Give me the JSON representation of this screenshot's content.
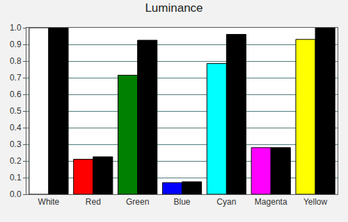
{
  "chart_data": {
    "type": "bar",
    "title": "Luminance",
    "categories": [
      "White",
      "Red",
      "Green",
      "Blue",
      "Cyan",
      "Magenta",
      "Yellow"
    ],
    "series": [
      {
        "colors": [
          "#ffffff",
          "#ff0000",
          "#008000",
          "#0000ff",
          "#00ffff",
          "#ff00ff",
          "#ffff00"
        ],
        "values": [
          1.0,
          0.21,
          0.715,
          0.07,
          0.785,
          0.28,
          0.93
        ]
      },
      {
        "color": "#000000",
        "values": [
          1.0,
          0.225,
          0.925,
          0.075,
          0.96,
          0.28,
          1.0
        ]
      }
    ],
    "ylim": [
      0,
      1.0
    ],
    "yticks": [
      {
        "value": 0,
        "label": "0.0"
      },
      0.1,
      0.2,
      0.3,
      0.4,
      0.5,
      0.6,
      0.7,
      0.8,
      0.9,
      {
        "value": 1,
        "label": "1.0"
      }
    ],
    "grid": true
  }
}
